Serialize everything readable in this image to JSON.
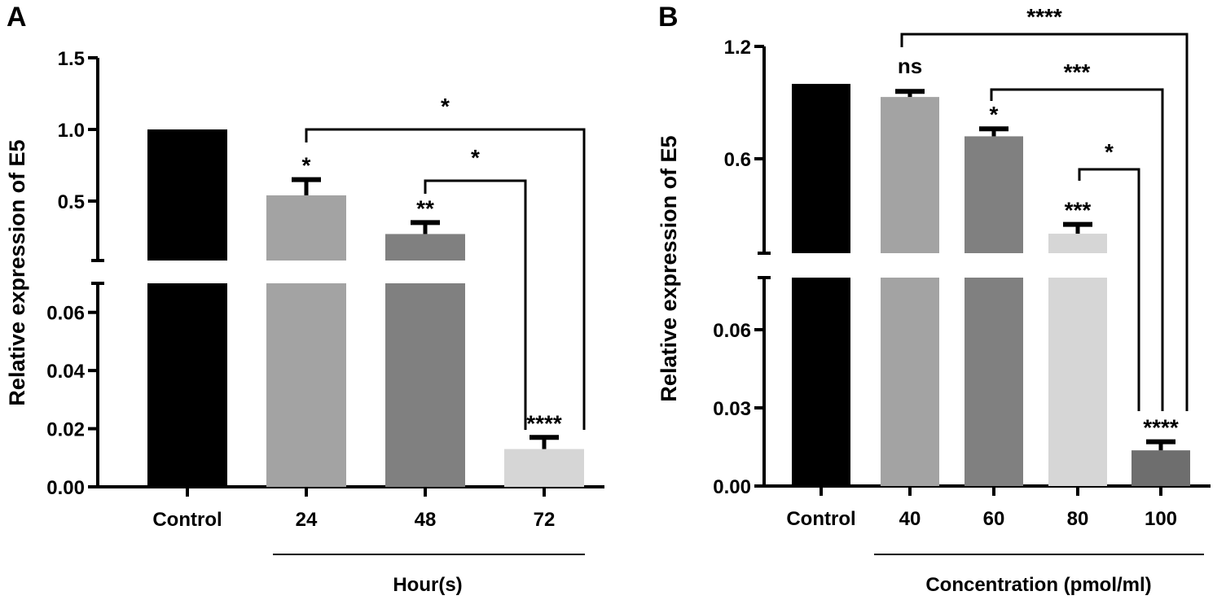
{
  "chart_data": [
    {
      "type": "bar",
      "panel_label": "A",
      "ylabel": "Relative expression of E5",
      "xlabel": "Hour(s)",
      "categories": [
        "Control",
        "24",
        "48",
        "72"
      ],
      "values": [
        1.0,
        0.54,
        0.27,
        0.013
      ],
      "error_upper": [
        null,
        0.65,
        0.35,
        0.017
      ],
      "colors": [
        "#000000",
        "#a3a3a3",
        "#808080",
        "#d6d6d6"
      ],
      "y_axis_broken": true,
      "lower_segment": {
        "ylim": [
          0,
          0.07
        ],
        "ticks": [
          "0.00",
          "0.02",
          "0.04",
          "0.06"
        ]
      },
      "upper_segment": {
        "ylim": [
          0.085,
          1.5
        ],
        "ticks": [
          "0.5",
          "1.0",
          "1.5"
        ]
      },
      "marks_above_bars": [
        "",
        "*",
        "**",
        "****"
      ],
      "comparisons": [
        {
          "from": "24",
          "to": "72",
          "label": "*"
        },
        {
          "from": "48",
          "to": "72",
          "label": "*"
        }
      ],
      "grid": false
    },
    {
      "type": "bar",
      "panel_label": "B",
      "ylabel": "Relative expression of E5",
      "xlabel": "Concentration (pmol/ml)",
      "categories": [
        "Control",
        "40",
        "60",
        "80",
        "100"
      ],
      "values": [
        1.0,
        0.93,
        0.72,
        0.2,
        0.0137
      ],
      "error_upper": [
        null,
        0.96,
        0.76,
        0.25,
        0.017
      ],
      "colors": [
        "#000000",
        "#a3a3a3",
        "#808080",
        "#d6d6d6",
        "#6e6e6e"
      ],
      "y_axis_broken": true,
      "lower_segment": {
        "ylim": [
          0,
          0.08
        ],
        "ticks": [
          "0.00",
          "0.03",
          "0.06"
        ]
      },
      "upper_segment": {
        "ylim": [
          0.096,
          1.2
        ],
        "ticks": [
          "0.6",
          "1.2"
        ]
      },
      "marks_above_bars": [
        "",
        "ns",
        "*",
        "***",
        "****"
      ],
      "comparisons": [
        {
          "from": "40",
          "to": "100",
          "label": "****"
        },
        {
          "from": "60",
          "to": "100",
          "label": "***"
        },
        {
          "from": "80",
          "to": "100",
          "label": "*"
        }
      ],
      "grid": false
    }
  ]
}
